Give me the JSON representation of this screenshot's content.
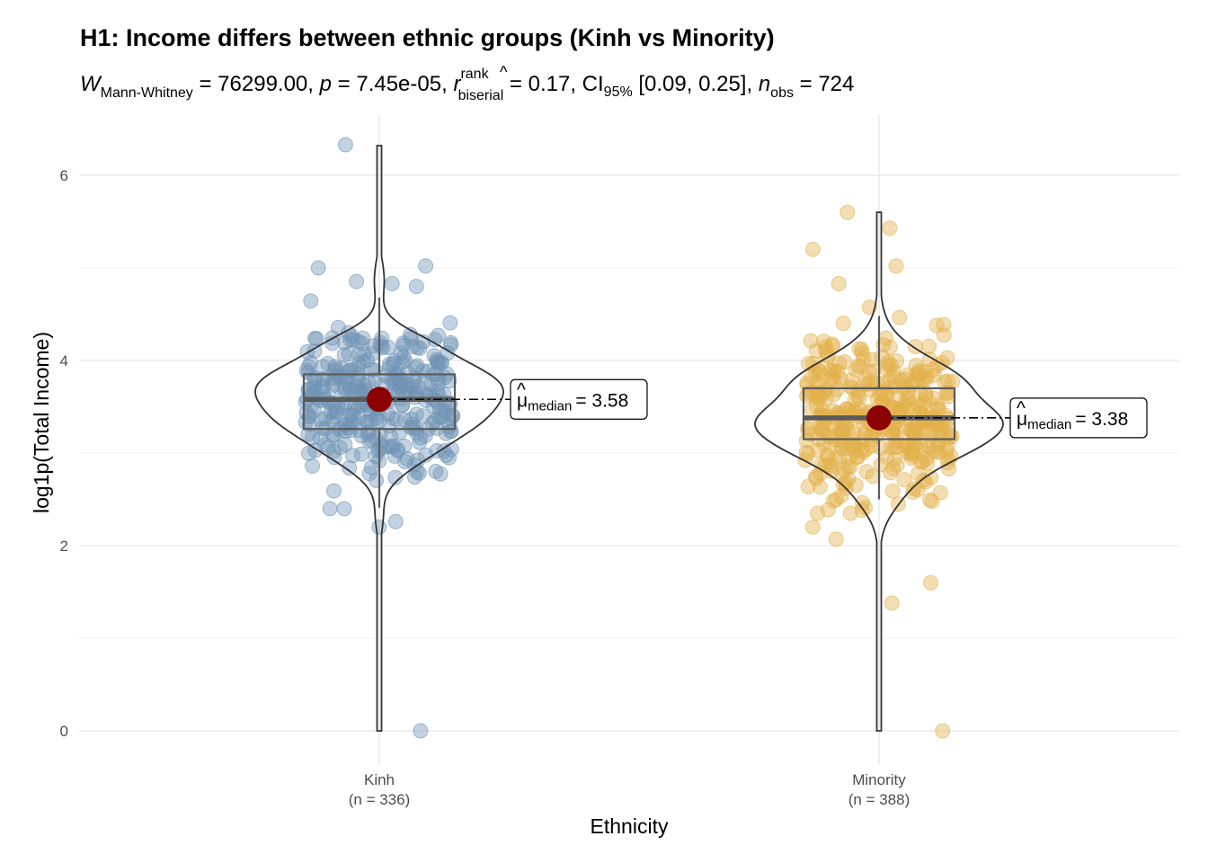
{
  "chart_data": {
    "type": "violin-box-scatter",
    "title": "H1: Income differs between ethnic groups (Kinh vs Minority)",
    "subtitle": {
      "statistic_symbol": "W",
      "statistic_sub": "Mann-Whitney",
      "statistic_value": "76299.00",
      "p_symbol": "p",
      "p_value": "7.45e-05",
      "effect_symbol": "r",
      "effect_sup": "rank",
      "effect_sub": "biserial",
      "effect_value": "0.17",
      "ci_symbol": "CI",
      "ci_sub": "95%",
      "ci_value": "[0.09, 0.25]",
      "n_symbol": "n",
      "n_sub": "obs",
      "n_value": "724"
    },
    "xlabel": "Ethnicity",
    "ylabel": "log1p(Total Income)",
    "ylim": [
      -0.3,
      6.5
    ],
    "yticks": [
      0,
      2,
      4,
      6
    ],
    "grid": true,
    "groups": [
      {
        "name": "Kinh",
        "n_label": "(n = 336)",
        "n": 336,
        "color": "#6f93b5",
        "median": 3.58,
        "median_label_symbol": "μ",
        "median_label_sub": "median",
        "median_label_value": "= 3.58",
        "q1": 3.26,
        "q3": 3.85,
        "whisker_low": 2.41,
        "whisker_high": 4.68,
        "min": 0.0,
        "max": 6.33,
        "notable_points": [
          6.33,
          5.02,
          5.0,
          4.83,
          4.8,
          2.4,
          2.2,
          0.0
        ]
      },
      {
        "name": "Minority",
        "n_label": "(n = 388)",
        "n": 388,
        "color": "#e3b04b",
        "median": 3.38,
        "median_label_symbol": "μ",
        "median_label_sub": "median",
        "median_label_value": "= 3.38",
        "q1": 3.15,
        "q3": 3.7,
        "whisker_low": 2.5,
        "whisker_high": 4.48,
        "min": 0.0,
        "max": 5.6,
        "notable_points": [
          5.6,
          5.43,
          5.2,
          5.02,
          4.83,
          2.2,
          2.07,
          1.6,
          1.38,
          0.0
        ]
      }
    ]
  }
}
